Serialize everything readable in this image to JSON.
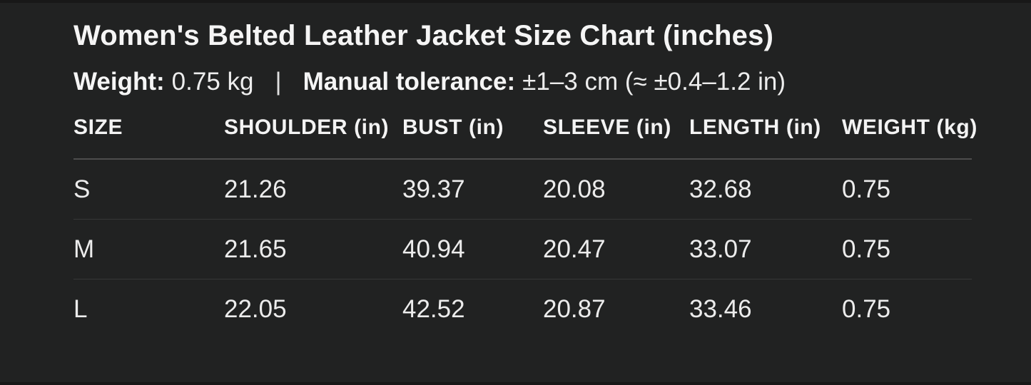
{
  "header": {
    "title": "Women's Belted Leather Jacket Size Chart (inches)"
  },
  "meta": {
    "weight_label": "Weight:",
    "weight_value": "0.75 kg",
    "separator": "|",
    "tolerance_label": "Manual tolerance:",
    "tolerance_value": "±1–3 cm (≈ ±0.4–1.2 in)"
  },
  "table": {
    "columns": [
      "SIZE",
      "SHOULDER (in)",
      "BUST (in)",
      "SLEEVE (in)",
      "LENGTH (in)",
      "WEIGHT (kg)"
    ],
    "rows": [
      {
        "cells": [
          "S",
          "21.26",
          "39.37",
          "20.08",
          "32.68",
          "0.75"
        ]
      },
      {
        "cells": [
          "M",
          "21.65",
          "40.94",
          "20.47",
          "33.07",
          "0.75"
        ]
      },
      {
        "cells": [
          "L",
          "22.05",
          "42.52",
          "20.87",
          "33.46",
          "0.75"
        ]
      }
    ]
  },
  "chart_data": {
    "type": "table",
    "title": "Women's Belted Leather Jacket Size Chart (inches)",
    "columns": [
      "SIZE",
      "SHOULDER (in)",
      "BUST (in)",
      "SLEEVE (in)",
      "LENGTH (in)",
      "WEIGHT (kg)"
    ],
    "rows": [
      [
        "S",
        21.26,
        39.37,
        20.08,
        32.68,
        0.75
      ],
      [
        "M",
        21.65,
        40.94,
        20.47,
        33.07,
        0.75
      ],
      [
        "L",
        22.05,
        42.52,
        20.87,
        33.46,
        0.75
      ]
    ],
    "annotations": "Weight: 0.75 kg | Manual tolerance: ±1–3 cm (≈ ±0.4–1.2 in)"
  },
  "colors": {
    "background": "#212222",
    "text_primary": "#f5f5f5",
    "text_secondary": "#ececec",
    "header_divider": "#4d4d4d",
    "row_divider": "#373737"
  }
}
